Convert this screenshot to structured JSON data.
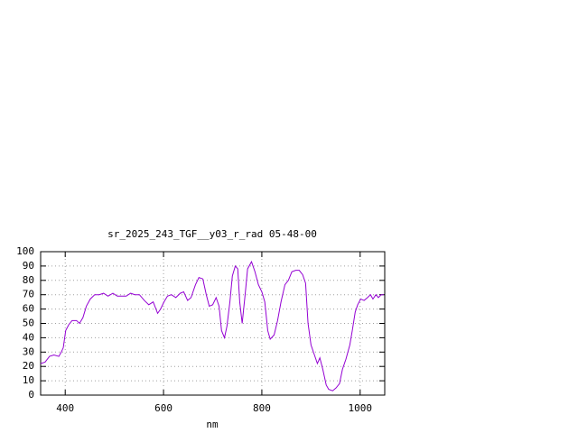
{
  "chart_data": {
    "type": "line",
    "title": "sr_2025_243_TGF__y03_r_rad 05-48-00",
    "x_label": "nm",
    "xlim": [
      350,
      1050
    ],
    "xticks": [
      400,
      600,
      800,
      1000
    ],
    "ylim": [
      0,
      100
    ],
    "yticks": [
      0,
      10,
      20,
      30,
      40,
      50,
      60,
      70,
      80,
      90,
      100
    ],
    "grid": true,
    "x": [
      350,
      359,
      368,
      377,
      387,
      392,
      396,
      401,
      407,
      414,
      423,
      429,
      436,
      443,
      451,
      460,
      469,
      478,
      487,
      497,
      506,
      515,
      524,
      533,
      542,
      551,
      561,
      570,
      579,
      588,
      594,
      601,
      608,
      616,
      625,
      634,
      641,
      649,
      656,
      665,
      672,
      680,
      687,
      693,
      700,
      707,
      713,
      718,
      724,
      729,
      735,
      740,
      746,
      751,
      755,
      760,
      766,
      771,
      779,
      786,
      793,
      800,
      806,
      812,
      817,
      825,
      832,
      839,
      847,
      854,
      861,
      869,
      876,
      883,
      889,
      894,
      900,
      907,
      913,
      918,
      924,
      931,
      936,
      944,
      951,
      958,
      964,
      971,
      979,
      984,
      990,
      995,
      1001,
      1008,
      1015,
      1021,
      1026,
      1032,
      1037,
      1043,
      1048
    ],
    "series": [
      {
        "color": "#9400d3",
        "values": [
          22,
          23,
          27,
          28,
          27,
          30,
          33,
          45,
          49,
          52,
          52,
          50,
          54,
          62,
          67,
          70,
          70,
          71,
          69,
          71,
          69,
          69,
          69,
          71,
          70,
          70,
          66,
          63,
          65,
          57,
          60,
          65,
          69,
          70,
          68,
          71,
          72,
          66,
          68,
          77,
          82,
          81,
          70,
          62,
          63,
          68,
          62,
          45,
          40,
          48,
          65,
          83,
          90,
          88,
          65,
          50,
          70,
          88,
          93,
          86,
          77,
          72,
          65,
          45,
          39,
          42,
          52,
          65,
          77,
          80,
          86,
          87,
          87,
          84,
          78,
          50,
          35,
          28,
          22,
          26,
          18,
          7,
          4,
          3,
          5,
          8,
          18,
          25,
          35,
          45,
          58,
          63,
          67,
          66,
          68,
          70,
          67,
          70,
          68,
          70,
          70
        ]
      }
    ]
  }
}
